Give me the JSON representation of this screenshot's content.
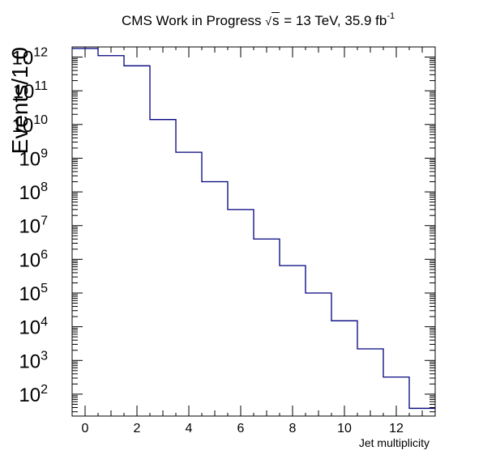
{
  "chart_data": {
    "type": "step-histogram",
    "title": {
      "prefix": "CMS Work in Progress",
      "sqrt_symbol": "√",
      "sqrt_arg": "s",
      "energy": "= 13 TeV, 35.9 fb",
      "lumi_exponent": "-1"
    },
    "xlabel": "Jet multiplicity",
    "ylabel": "Events/1.0",
    "xlim": [
      -0.5,
      13.5
    ],
    "ylim_log10": [
      1.35,
      12.3
    ],
    "log_y": true,
    "grid": false,
    "x_ticks": [
      "0",
      "2",
      "4",
      "6",
      "8",
      "10",
      "12"
    ],
    "y_tick_base": "10",
    "y_tick_exponents": [
      "2",
      "3",
      "4",
      "5",
      "6",
      "7",
      "8",
      "9",
      "10",
      "11",
      "12"
    ],
    "bins": [
      {
        "low": -0.5,
        "high": 0.5,
        "value": 1800000000000.0
      },
      {
        "low": 0.5,
        "high": 1.5,
        "value": 1100000000000.0
      },
      {
        "low": 1.5,
        "high": 2.5,
        "value": 550000000000.0
      },
      {
        "low": 2.5,
        "high": 3.5,
        "value": 14000000000.0
      },
      {
        "low": 3.5,
        "high": 4.5,
        "value": 1500000000.0
      },
      {
        "low": 4.5,
        "high": 5.5,
        "value": 200000000.0
      },
      {
        "low": 5.5,
        "high": 6.5,
        "value": 30000000.0
      },
      {
        "low": 6.5,
        "high": 7.5,
        "value": 4000000.0
      },
      {
        "low": 7.5,
        "high": 8.5,
        "value": 650000.0
      },
      {
        "low": 8.5,
        "high": 9.5,
        "value": 100000.0
      },
      {
        "low": 9.5,
        "high": 10.5,
        "value": 15000.0
      },
      {
        "low": 10.5,
        "high": 11.5,
        "value": 2200.0
      },
      {
        "low": 11.5,
        "high": 12.5,
        "value": 320.0
      },
      {
        "low": 12.5,
        "high": 13.5,
        "value": 38
      }
    ],
    "line_color": "#00007f",
    "frame_color": "#000000"
  }
}
